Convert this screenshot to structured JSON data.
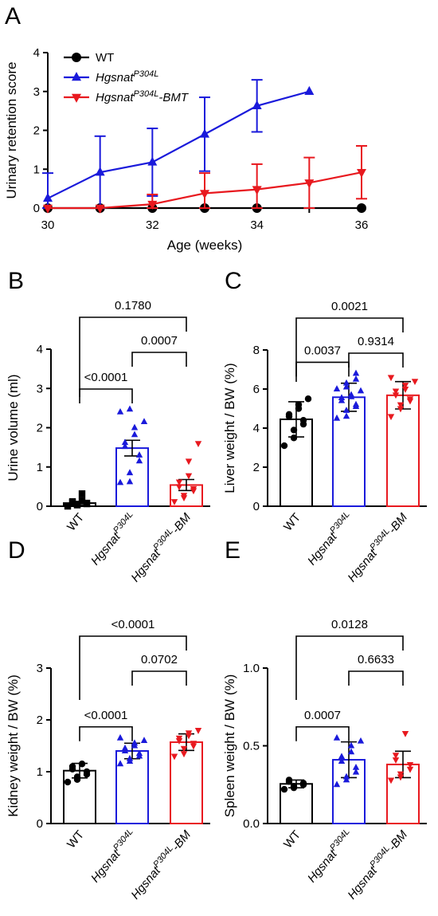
{
  "colors": {
    "wt": "#000000",
    "p304l": "#1a1adb",
    "bmt": "#e8191f"
  },
  "chart_data": [
    {
      "panel": "A",
      "type": "line",
      "xlabel": "Age (weeks)",
      "ylabel": "Urinary retention score",
      "xlim": [
        30,
        36
      ],
      "ylim": [
        0,
        4
      ],
      "xticks": [
        "30",
        "32",
        "34",
        "36"
      ],
      "yticks": [
        "0",
        "1",
        "2",
        "3",
        "4"
      ],
      "legend": "top-left",
      "series": [
        {
          "name": "WT",
          "name_base": "WT",
          "name_sup": "",
          "name_suffix": "",
          "color": "#000000",
          "marker": "circle",
          "x": [
            30,
            31,
            32,
            33,
            34,
            36
          ],
          "y": [
            0,
            0,
            0,
            0,
            0,
            0
          ],
          "err": [
            0,
            0,
            0,
            0,
            0,
            0
          ]
        },
        {
          "name": "HgsnatP304L",
          "name_base": "Hgsnat",
          "name_sup": "P304L",
          "name_suffix": "",
          "color": "#1a1adb",
          "marker": "triangle-up",
          "x": [
            30,
            31,
            32,
            33,
            34,
            35
          ],
          "y": [
            0.25,
            0.92,
            1.18,
            1.9,
            2.63,
            3.0
          ],
          "err": [
            0.65,
            0.93,
            0.87,
            0.95,
            0.67,
            0
          ]
        },
        {
          "name": "HgsnatP304L-BMT",
          "name_base": "Hgsnat",
          "name_sup": "P304L",
          "name_suffix": "-BMT",
          "color": "#e8191f",
          "marker": "triangle-down",
          "x": [
            30,
            31,
            32,
            33,
            34,
            35,
            36
          ],
          "y": [
            0,
            0,
            0.1,
            0.38,
            0.48,
            0.65,
            0.92
          ],
          "err": [
            0,
            0,
            0.25,
            0.52,
            0.65,
            0.65,
            0.68
          ]
        }
      ]
    },
    {
      "panel": "B",
      "type": "bar",
      "ylabel": "Urine volume (ml)",
      "ylim": [
        0,
        4
      ],
      "yticks": [
        "0",
        "1",
        "2",
        "3",
        "4"
      ],
      "categories": [
        {
          "base": "WT",
          "sup": "",
          "suffix": ""
        },
        {
          "base": "Hgsnat",
          "sup": "P304L",
          "suffix": ""
        },
        {
          "base": "Hgsnat",
          "sup": "P304L",
          "suffix": "-BM"
        }
      ],
      "values": [
        0.08,
        1.48,
        0.54
      ],
      "sem": [
        0.04,
        0.2,
        0.14
      ],
      "points": [
        [
          0.0,
          0.03,
          0.05,
          0.06,
          0.08,
          0.1,
          0.12,
          0.15,
          0.32
        ],
        [
          0.6,
          0.62,
          0.85,
          1.15,
          1.3,
          1.52,
          1.62,
          1.82,
          2.0,
          2.15,
          2.4,
          2.47
        ],
        [
          0.12,
          0.22,
          0.28,
          0.4,
          0.45,
          0.5,
          0.62,
          0.78,
          1.15,
          1.6
        ]
      ],
      "comparisons": [
        {
          "from": 0,
          "to": 2,
          "label": "0.1780",
          "level": 2
        },
        {
          "from": 1,
          "to": 2,
          "label": "0.0007",
          "level": 1
        },
        {
          "from": 0,
          "to": 1,
          "label": "<0.0001",
          "level": 0
        }
      ]
    },
    {
      "panel": "C",
      "type": "bar",
      "ylabel": "Liver weight / BW (%)",
      "ylim": [
        0,
        8
      ],
      "yticks": [
        "0",
        "2",
        "4",
        "6",
        "8"
      ],
      "categories": [
        {
          "base": "WT",
          "sup": "",
          "suffix": ""
        },
        {
          "base": "Hgsnat",
          "sup": "P304L",
          "suffix": ""
        },
        {
          "base": "Hgsnat",
          "sup": "P304L",
          "suffix": "-BM"
        }
      ],
      "values": [
        4.45,
        5.58,
        5.68
      ],
      "sd": [
        0.9,
        0.72,
        0.7
      ],
      "points": [
        [
          3.1,
          3.5,
          3.9,
          4.2,
          4.4,
          4.6,
          4.7,
          5.0,
          5.2,
          5.5
        ],
        [
          4.5,
          4.6,
          4.9,
          5.1,
          5.2,
          5.4,
          5.55,
          5.6,
          5.7,
          5.9,
          6.0,
          6.1,
          6.3,
          6.5,
          6.8
        ],
        [
          4.6,
          5.0,
          5.2,
          5.4,
          5.5,
          5.7,
          5.9,
          6.0,
          6.2,
          6.4,
          6.6
        ]
      ],
      "comparisons": [
        {
          "from": 0,
          "to": 2,
          "label": "0.0021",
          "level": 2
        },
        {
          "from": 1,
          "to": 2,
          "label": "0.9314",
          "level": 1
        },
        {
          "from": 0,
          "to": 1,
          "label": "0.0037",
          "level": 0
        }
      ]
    },
    {
      "panel": "D",
      "type": "bar",
      "ylabel": "Kidney weight / BW (%)",
      "ylim": [
        0,
        3
      ],
      "yticks": [
        "0",
        "1",
        "2",
        "3"
      ],
      "categories": [
        {
          "base": "WT",
          "sup": "",
          "suffix": ""
        },
        {
          "base": "Hgsnat",
          "sup": "P304L",
          "suffix": ""
        },
        {
          "base": "Hgsnat",
          "sup": "P304L",
          "suffix": "-BM"
        }
      ],
      "values": [
        1.02,
        1.4,
        1.57
      ],
      "sd": [
        0.14,
        0.15,
        0.16
      ],
      "points": [
        [
          0.8,
          0.85,
          0.9,
          0.95,
          1.0,
          1.05,
          1.1,
          1.15
        ],
        [
          1.15,
          1.2,
          1.25,
          1.3,
          1.35,
          1.4,
          1.45,
          1.5,
          1.55,
          1.6,
          1.65
        ],
        [
          1.3,
          1.35,
          1.45,
          1.5,
          1.55,
          1.6,
          1.65,
          1.7,
          1.75,
          1.8
        ]
      ],
      "comparisons": [
        {
          "from": 0,
          "to": 2,
          "label": "<0.0001",
          "level": 2
        },
        {
          "from": 1,
          "to": 2,
          "label": "0.0702",
          "level": 1
        },
        {
          "from": 0,
          "to": 1,
          "label": "<0.0001",
          "level": 0
        }
      ]
    },
    {
      "panel": "E",
      "type": "bar",
      "ylabel": "Spleen weight / BW (%)",
      "ylim": [
        0,
        1.0
      ],
      "yticks": [
        "0.0",
        "0.5",
        "1.0"
      ],
      "categories": [
        {
          "base": "WT",
          "sup": "",
          "suffix": ""
        },
        {
          "base": "Hgsnat",
          "sup": "P304L",
          "suffix": ""
        },
        {
          "base": "Hgsnat",
          "sup": "P304L",
          "suffix": "-BM"
        }
      ],
      "values": [
        0.255,
        0.41,
        0.38
      ],
      "sd": [
        0.025,
        0.115,
        0.085
      ],
      "points": [
        [
          0.22,
          0.23,
          0.24,
          0.25,
          0.26,
          0.27,
          0.28
        ],
        [
          0.25,
          0.28,
          0.3,
          0.33,
          0.36,
          0.4,
          0.43,
          0.46,
          0.5,
          0.53,
          0.55
        ],
        [
          0.28,
          0.3,
          0.32,
          0.35,
          0.38,
          0.41,
          0.44,
          0.58
        ]
      ],
      "comparisons": [
        {
          "from": 0,
          "to": 2,
          "label": "0.0128",
          "level": 2
        },
        {
          "from": 1,
          "to": 2,
          "label": "0.6633",
          "level": 1
        },
        {
          "from": 0,
          "to": 1,
          "label": "0.0007",
          "level": 0
        }
      ]
    }
  ]
}
